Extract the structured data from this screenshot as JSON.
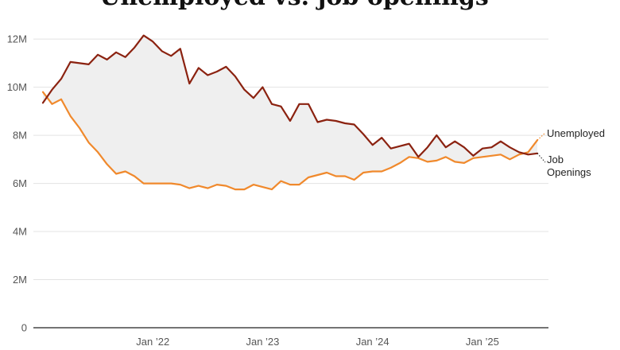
{
  "chart_data": {
    "type": "line",
    "title": "Unemployed vs. job openings",
    "xlabel": "",
    "ylabel": "",
    "ylim": [
      0,
      12.7
    ],
    "xlim": [
      "2021-01",
      "2025-07"
    ],
    "grid": true,
    "legend": "direct labels at line ends (right)",
    "y_ticks": [
      {
        "value": 0,
        "label": "0"
      },
      {
        "value": 2,
        "label": "2M"
      },
      {
        "value": 4,
        "label": "4M"
      },
      {
        "value": 6,
        "label": "6M"
      },
      {
        "value": 8,
        "label": "8M"
      },
      {
        "value": 10,
        "label": "10M"
      },
      {
        "value": 12,
        "label": "12M"
      }
    ],
    "x_ticks": [
      {
        "value": "2022-01",
        "label": "Jan ’22"
      },
      {
        "value": "2023-01",
        "label": "Jan ’23"
      },
      {
        "value": "2024-01",
        "label": "Jan ’24"
      },
      {
        "value": "2025-01",
        "label": "Jan ’25"
      }
    ],
    "x": [
      "2021-01",
      "2021-02",
      "2021-03",
      "2021-04",
      "2021-05",
      "2021-06",
      "2021-07",
      "2021-08",
      "2021-09",
      "2021-10",
      "2021-11",
      "2021-12",
      "2022-01",
      "2022-02",
      "2022-03",
      "2022-04",
      "2022-05",
      "2022-06",
      "2022-07",
      "2022-08",
      "2022-09",
      "2022-10",
      "2022-11",
      "2022-12",
      "2023-01",
      "2023-02",
      "2023-03",
      "2023-04",
      "2023-05",
      "2023-06",
      "2023-07",
      "2023-08",
      "2023-09",
      "2023-10",
      "2023-11",
      "2023-12",
      "2024-01",
      "2024-02",
      "2024-03",
      "2024-04",
      "2024-05",
      "2024-06",
      "2024-07",
      "2024-08",
      "2024-09",
      "2024-10",
      "2024-11",
      "2024-12",
      "2025-01",
      "2025-02",
      "2025-03",
      "2025-04",
      "2025-05",
      "2025-06",
      "2025-07"
    ],
    "series": [
      {
        "name": "Unemployed",
        "color": "#f0892c",
        "values": [
          9.8,
          9.3,
          9.5,
          8.8,
          8.3,
          7.7,
          7.3,
          6.8,
          6.4,
          6.5,
          6.3,
          6.0,
          6.0,
          6.0,
          6.0,
          5.95,
          5.8,
          5.9,
          5.8,
          5.95,
          5.9,
          5.75,
          5.75,
          5.95,
          5.85,
          5.75,
          6.1,
          5.95,
          5.95,
          6.25,
          6.35,
          6.45,
          6.3,
          6.3,
          6.15,
          6.45,
          6.5,
          6.5,
          6.65,
          6.85,
          7.1,
          7.05,
          6.9,
          6.95,
          7.1,
          6.9,
          6.85,
          7.05,
          7.1,
          7.15,
          7.2,
          7.0,
          7.2,
          7.3,
          7.8
        ]
      },
      {
        "name": "Job Openings",
        "color": "#8b2210",
        "values": [
          9.35,
          9.9,
          10.35,
          11.05,
          11.0,
          10.95,
          11.35,
          11.15,
          11.45,
          11.25,
          11.65,
          12.15,
          11.9,
          11.5,
          11.3,
          11.6,
          10.15,
          10.8,
          10.5,
          10.65,
          10.85,
          10.45,
          9.9,
          9.55,
          10.0,
          9.3,
          9.2,
          8.6,
          9.3,
          9.3,
          8.55,
          8.65,
          8.6,
          8.5,
          8.45,
          8.05,
          7.6,
          7.9,
          7.45,
          7.55,
          7.65,
          7.1,
          7.5,
          8.0,
          7.5,
          7.75,
          7.5,
          7.15,
          7.45,
          7.5,
          7.75,
          7.5,
          7.3,
          7.2,
          7.25
        ]
      }
    ]
  },
  "colors": {
    "gap_fill": "#efefef",
    "gridline": "#e3e3e3",
    "axis_line": "#222222",
    "tick_text": "#555555"
  }
}
